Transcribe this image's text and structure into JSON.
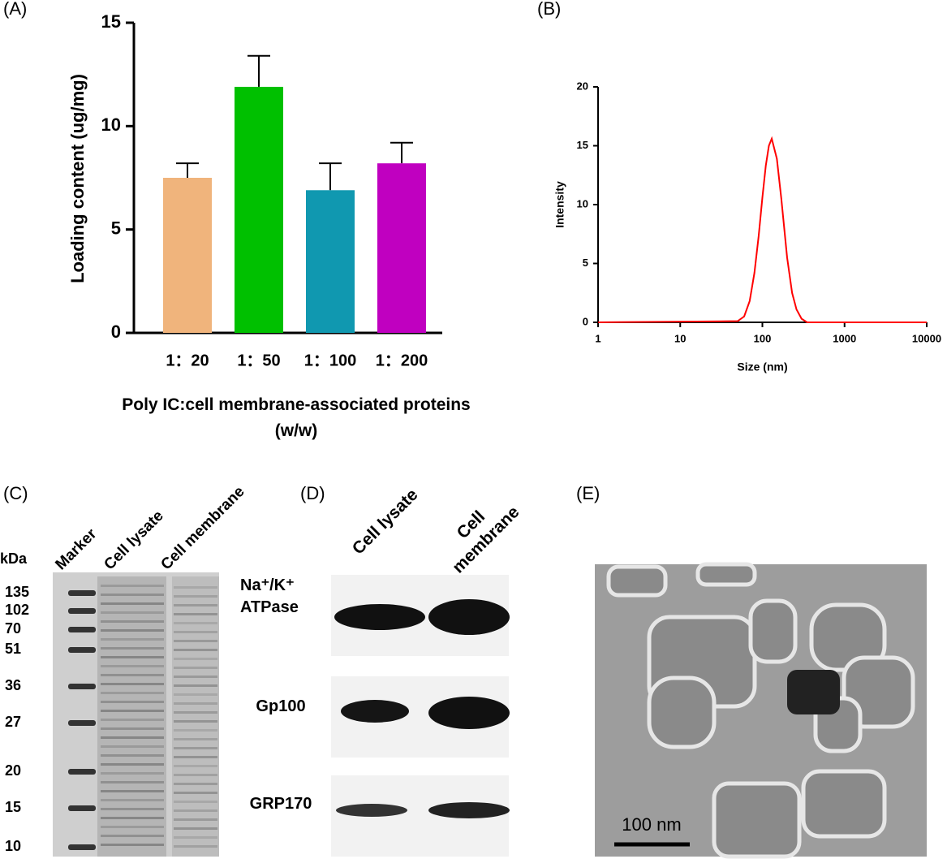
{
  "chart_data": [
    {
      "type": "bar",
      "panel_label": "(A)",
      "ylabel": "Loading content (ug/mg)",
      "xlabel": "Poly IC:cell membrane-associated proteins (w/w)",
      "categories": [
        "1：20",
        "1：50",
        "1：100",
        "1：200"
      ],
      "values": [
        7.5,
        11.9,
        6.9,
        8.2
      ],
      "errors": [
        0.7,
        1.5,
        1.3,
        1.0
      ],
      "colors": [
        "#f0b47c",
        "#00c000",
        "#1098b0",
        "#c000c0"
      ],
      "ylim": [
        0,
        15
      ],
      "yticks": [
        0,
        5,
        10,
        15
      ]
    },
    {
      "type": "line",
      "panel_label": "(B)",
      "xlabel": "Size (nm)",
      "ylabel": "Intensity",
      "xscale": "log",
      "xlim": [
        1,
        10000
      ],
      "xticks": [
        1,
        10,
        100,
        1000,
        10000
      ],
      "ylim": [
        0,
        20
      ],
      "yticks": [
        0,
        5,
        10,
        15,
        20
      ],
      "x": [
        1,
        50,
        60,
        70,
        80,
        90,
        100,
        110,
        120,
        130,
        150,
        170,
        200,
        230,
        260,
        300,
        350,
        10000
      ],
      "series": [
        {
          "color": "#ff0000",
          "values": [
            0,
            0.1,
            0.5,
            1.8,
            4.2,
            7.3,
            10.6,
            13.3,
            15.0,
            15.6,
            13.9,
            10.5,
            5.5,
            2.5,
            1.1,
            0.3,
            0,
            0
          ]
        }
      ]
    }
  ],
  "gel": {
    "panel_label": "(C)",
    "unit": "kDa",
    "lanes": [
      "Marker",
      "Cell lysate",
      "Cell membrane"
    ],
    "markers": [
      135,
      102,
      70,
      51,
      36,
      27,
      20,
      15,
      10
    ]
  },
  "western": {
    "panel_label": "(D)",
    "lanes": [
      "Cell lysate",
      "Cell membrane"
    ],
    "rows": [
      "Na⁺/K⁺ ATPase",
      "Gp100",
      "GRP170"
    ]
  },
  "tem": {
    "panel_label": "(E)",
    "scale_bar": "100 nm"
  }
}
